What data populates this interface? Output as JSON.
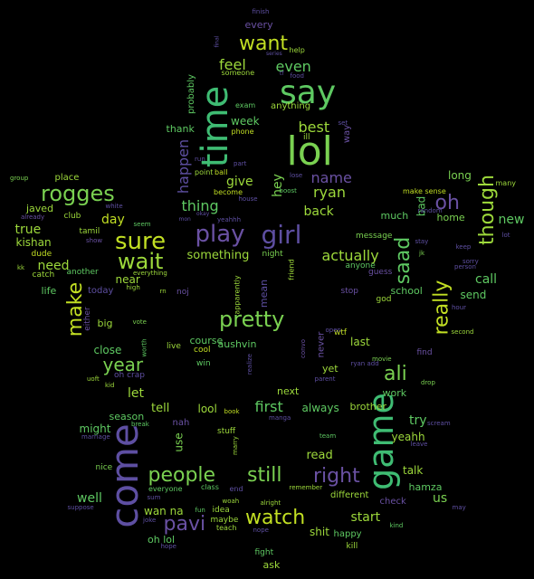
{
  "words": [
    {
      "text": "lol",
      "color": "#7ad151"
    },
    {
      "text": "say",
      "color": "#5ec962"
    },
    {
      "text": "time",
      "color": "#3fbc73"
    },
    {
      "text": "game",
      "color": "#3fbc73"
    },
    {
      "text": "come",
      "color": "#5e4fa2"
    },
    {
      "text": "want",
      "color": "#c2df23"
    },
    {
      "text": "rogges",
      "color": "#7ad151"
    },
    {
      "text": "play",
      "color": "#6a51a3"
    },
    {
      "text": "girl",
      "color": "#5e4fa2"
    },
    {
      "text": "sure",
      "color": "#c2df23"
    },
    {
      "text": "wait",
      "color": "#9dd93b"
    },
    {
      "text": "pretty",
      "color": "#7ad151"
    },
    {
      "text": "make",
      "color": "#c2df23"
    },
    {
      "text": "really",
      "color": "#c2df23"
    },
    {
      "text": "saad",
      "color": "#5ec962"
    },
    {
      "text": "though",
      "color": "#9dd93b"
    },
    {
      "text": "oh",
      "color": "#6a51a3"
    },
    {
      "text": "people",
      "color": "#7ad151"
    },
    {
      "text": "still",
      "color": "#7ad151"
    },
    {
      "text": "right",
      "color": "#6a51a3"
    },
    {
      "text": "watch",
      "color": "#c2df23"
    },
    {
      "text": "pavi",
      "color": "#6a51a3"
    },
    {
      "text": "ali",
      "color": "#7ad151"
    },
    {
      "text": "year",
      "color": "#7ad151"
    },
    {
      "text": "feel",
      "color": "#9dd93b"
    },
    {
      "text": "even",
      "color": "#5ec962"
    },
    {
      "text": "best",
      "color": "#9dd93b"
    },
    {
      "text": "name",
      "color": "#6a51a3"
    },
    {
      "text": "ryan",
      "color": "#9dd93b"
    },
    {
      "text": "back",
      "color": "#9dd93b"
    },
    {
      "text": "give",
      "color": "#9dd93b"
    },
    {
      "text": "thing",
      "color": "#5ec962"
    },
    {
      "text": "happen",
      "color": "#5e4fa2"
    },
    {
      "text": "hey",
      "color": "#7ad151"
    },
    {
      "text": "actually",
      "color": "#9dd93b"
    },
    {
      "text": "something",
      "color": "#9dd93b"
    },
    {
      "text": "day",
      "color": "#c2df23"
    },
    {
      "text": "true",
      "color": "#9dd93b"
    },
    {
      "text": "need",
      "color": "#9dd93b"
    },
    {
      "text": "kishan",
      "color": "#9dd93b"
    },
    {
      "text": "javed",
      "color": "#9dd93b"
    },
    {
      "text": "new",
      "color": "#5ec962"
    },
    {
      "text": "call",
      "color": "#5ec962"
    },
    {
      "text": "send",
      "color": "#5ec962"
    },
    {
      "text": "home",
      "color": "#7ad151"
    },
    {
      "text": "long",
      "color": "#7ad151"
    },
    {
      "text": "school",
      "color": "#5ec962"
    },
    {
      "text": "try",
      "color": "#5ec962"
    },
    {
      "text": "talk",
      "color": "#9dd93b"
    },
    {
      "text": "hamza",
      "color": "#5ec962"
    },
    {
      "text": "us",
      "color": "#7ad151"
    },
    {
      "text": "first",
      "color": "#5ec962"
    },
    {
      "text": "tell",
      "color": "#9dd93b"
    },
    {
      "text": "let",
      "color": "#9dd93b"
    },
    {
      "text": "lool",
      "color": "#9dd93b"
    },
    {
      "text": "start",
      "color": "#9dd93b"
    },
    {
      "text": "well",
      "color": "#5ec962"
    },
    {
      "text": "read",
      "color": "#9dd93b"
    },
    {
      "text": "shit",
      "color": "#9dd93b"
    },
    {
      "text": "close",
      "color": "#5ec962"
    },
    {
      "text": "course",
      "color": "#5ec962"
    },
    {
      "text": "aushvin",
      "color": "#5ec962"
    },
    {
      "text": "last",
      "color": "#9dd93b"
    },
    {
      "text": "yet",
      "color": "#9dd93b"
    },
    {
      "text": "always",
      "color": "#5ec962"
    },
    {
      "text": "brother",
      "color": "#9dd93b"
    },
    {
      "text": "work",
      "color": "#5ec962"
    },
    {
      "text": "yeahh",
      "color": "#9dd93b"
    },
    {
      "text": "might",
      "color": "#5ec962"
    },
    {
      "text": "season",
      "color": "#5ec962"
    },
    {
      "text": "near",
      "color": "#9dd93b"
    },
    {
      "text": "life",
      "color": "#5ec962"
    },
    {
      "text": "today",
      "color": "#5e4fa2"
    },
    {
      "text": "mean",
      "color": "#5e4fa2"
    },
    {
      "text": "bad",
      "color": "#5ec962"
    },
    {
      "text": "much",
      "color": "#5ec962"
    },
    {
      "text": "wan na",
      "color": "#9dd93b"
    },
    {
      "text": "oh lol",
      "color": "#5ec962"
    },
    {
      "text": "ask",
      "color": "#9dd93b"
    },
    {
      "text": "next",
      "color": "#9dd93b"
    },
    {
      "text": "use",
      "color": "#7ad151"
    },
    {
      "text": "big",
      "color": "#9dd93b"
    },
    {
      "text": "place",
      "color": "#9dd93b"
    },
    {
      "text": "week",
      "color": "#5ec962"
    },
    {
      "text": "thank",
      "color": "#5ec962"
    },
    {
      "text": "anything",
      "color": "#9dd93b"
    },
    {
      "text": "every",
      "color": "#6a51a3"
    },
    {
      "text": "probably",
      "color": "#5ec962"
    },
    {
      "text": "way",
      "color": "#6a51a3"
    },
    {
      "text": "never",
      "color": "#6a51a3"
    },
    {
      "text": "happy",
      "color": "#5ec962"
    },
    {
      "text": "different",
      "color": "#9dd93b"
    },
    {
      "text": "nah",
      "color": "#6a51a3"
    },
    {
      "text": "stuff",
      "color": "#9dd93b"
    },
    {
      "text": "check",
      "color": "#6a51a3"
    },
    {
      "text": "guess",
      "color": "#6a51a3"
    },
    {
      "text": "anyone",
      "color": "#5ec962"
    },
    {
      "text": "message",
      "color": "#7ad151"
    },
    {
      "text": "night",
      "color": "#7ad151"
    },
    {
      "text": "tamil",
      "color": "#9dd93b"
    },
    {
      "text": "club",
      "color": "#9dd93b"
    },
    {
      "text": "catch",
      "color": "#9dd93b"
    },
    {
      "text": "dude",
      "color": "#c2df23"
    },
    {
      "text": "another",
      "color": "#5ec962"
    },
    {
      "text": "either",
      "color": "#6a51a3"
    },
    {
      "text": "win",
      "color": "#5ec962"
    },
    {
      "text": "cool",
      "color": "#c2df23"
    },
    {
      "text": "live",
      "color": "#9dd93b"
    },
    {
      "text": "noj",
      "color": "#6a51a3"
    },
    {
      "text": "nice",
      "color": "#7ad151"
    },
    {
      "text": "apparently",
      "color": "#9dd93b"
    },
    {
      "text": "find",
      "color": "#6a51a3"
    },
    {
      "text": "god",
      "color": "#9dd93b"
    },
    {
      "text": "stop",
      "color": "#6a51a3"
    },
    {
      "text": "friend",
      "color": "#9dd93b"
    },
    {
      "text": "wtf",
      "color": "#c2df23"
    },
    {
      "text": "ill",
      "color": "#9dd93b"
    },
    {
      "text": "someone",
      "color": "#9dd93b"
    },
    {
      "text": "exam",
      "color": "#5ec962"
    },
    {
      "text": "help",
      "color": "#9dd93b"
    },
    {
      "text": "phone",
      "color": "#c2df23"
    },
    {
      "text": "become",
      "color": "#c2df23"
    },
    {
      "text": "point",
      "color": "#9dd93b"
    },
    {
      "text": "ball",
      "color": "#c2df23"
    },
    {
      "text": "part",
      "color": "#5e4fa2"
    },
    {
      "text": "run",
      "color": "#5e4fa2"
    },
    {
      "text": "house",
      "color": "#5e4fa2"
    },
    {
      "text": "lose",
      "color": "#5e4fa2"
    },
    {
      "text": "boost",
      "color": "#5ec962"
    },
    {
      "text": "finish",
      "color": "#5e4fa2"
    },
    {
      "text": "make sense",
      "color": "#c2df23"
    },
    {
      "text": "random",
      "color": "#5e4fa2"
    },
    {
      "text": "stay",
      "color": "#5e4fa2"
    },
    {
      "text": "jk",
      "color": "#7ad151"
    },
    {
      "text": "many",
      "color": "#9dd93b"
    },
    {
      "text": "sorry",
      "color": "#5e4fa2"
    },
    {
      "text": "person",
      "color": "#5e4fa2"
    },
    {
      "text": "keep",
      "color": "#5e4fa2"
    },
    {
      "text": "lot",
      "color": "#5e4fa2"
    },
    {
      "text": "hour",
      "color": "#5e4fa2"
    },
    {
      "text": "second",
      "color": "#9dd93b"
    },
    {
      "text": "group",
      "color": "#7ad151"
    },
    {
      "text": "already",
      "color": "#6a51a3"
    },
    {
      "text": "kk",
      "color": "#9dd93b"
    },
    {
      "text": "show",
      "color": "#6a51a3"
    },
    {
      "text": "seem",
      "color": "#5ec962"
    },
    {
      "text": "white",
      "color": "#5e4fa2"
    },
    {
      "text": "mon",
      "color": "#5e4fa2"
    },
    {
      "text": "okay",
      "color": "#5e4fa2"
    },
    {
      "text": "yeahhh",
      "color": "#5e4fa2"
    },
    {
      "text": "high",
      "color": "#9dd93b"
    },
    {
      "text": "everything",
      "color": "#9dd93b"
    },
    {
      "text": "rn",
      "color": "#9dd93b"
    },
    {
      "text": "vote",
      "color": "#7ad151"
    },
    {
      "text": "worth",
      "color": "#5ec962"
    },
    {
      "text": "oh crap",
      "color": "#5e4fa2"
    },
    {
      "text": "uoft",
      "color": "#9dd93b"
    },
    {
      "text": "kid",
      "color": "#9dd93b"
    },
    {
      "text": "realize",
      "color": "#5e4fa2"
    },
    {
      "text": "parent",
      "color": "#5e4fa2"
    },
    {
      "text": "ryan add",
      "color": "#5e4fa2"
    },
    {
      "text": "movie",
      "color": "#7ad151"
    },
    {
      "text": "drop",
      "color": "#7ad151"
    },
    {
      "text": "break",
      "color": "#5ec962"
    },
    {
      "text": "marriage",
      "color": "#5e4fa2"
    },
    {
      "text": "book",
      "color": "#c2df23"
    },
    {
      "text": "manga",
      "color": "#5e4fa2"
    },
    {
      "text": "marry",
      "color": "#9dd93b"
    },
    {
      "text": "team",
      "color": "#5ec962"
    },
    {
      "text": "scream",
      "color": "#5e4fa2"
    },
    {
      "text": "leave",
      "color": "#5e4fa2"
    },
    {
      "text": "convo",
      "color": "#6a51a3"
    },
    {
      "text": "open",
      "color": "#5e4fa2"
    },
    {
      "text": "food",
      "color": "#5e4fa2"
    },
    {
      "text": "final",
      "color": "#5e4fa2"
    },
    {
      "text": "series",
      "color": "#5e4fa2"
    },
    {
      "text": "tf",
      "color": "#5e4fa2"
    },
    {
      "text": "everyone",
      "color": "#5ec962"
    },
    {
      "text": "class",
      "color": "#5ec962"
    },
    {
      "text": "end",
      "color": "#5e4fa2"
    },
    {
      "text": "remember",
      "color": "#9dd93b"
    },
    {
      "text": "sum",
      "color": "#5e4fa2"
    },
    {
      "text": "suppose",
      "color": "#5e4fa2"
    },
    {
      "text": "joke",
      "color": "#5e4fa2"
    },
    {
      "text": "fun",
      "color": "#5ec962"
    },
    {
      "text": "idea",
      "color": "#9dd93b"
    },
    {
      "text": "maybe",
      "color": "#9dd93b"
    },
    {
      "text": "teach",
      "color": "#9dd93b"
    },
    {
      "text": "woah",
      "color": "#9dd93b"
    },
    {
      "text": "alright",
      "color": "#9dd93b"
    },
    {
      "text": "nope",
      "color": "#5e4fa2"
    },
    {
      "text": "hope",
      "color": "#5e4fa2"
    },
    {
      "text": "fight",
      "color": "#5ec962"
    },
    {
      "text": "kill",
      "color": "#9dd93b"
    },
    {
      "text": "kind",
      "color": "#5ec962"
    },
    {
      "text": "may",
      "color": "#5e4fa2"
    },
    {
      "text": "set",
      "color": "#5e4fa2"
    }
  ]
}
